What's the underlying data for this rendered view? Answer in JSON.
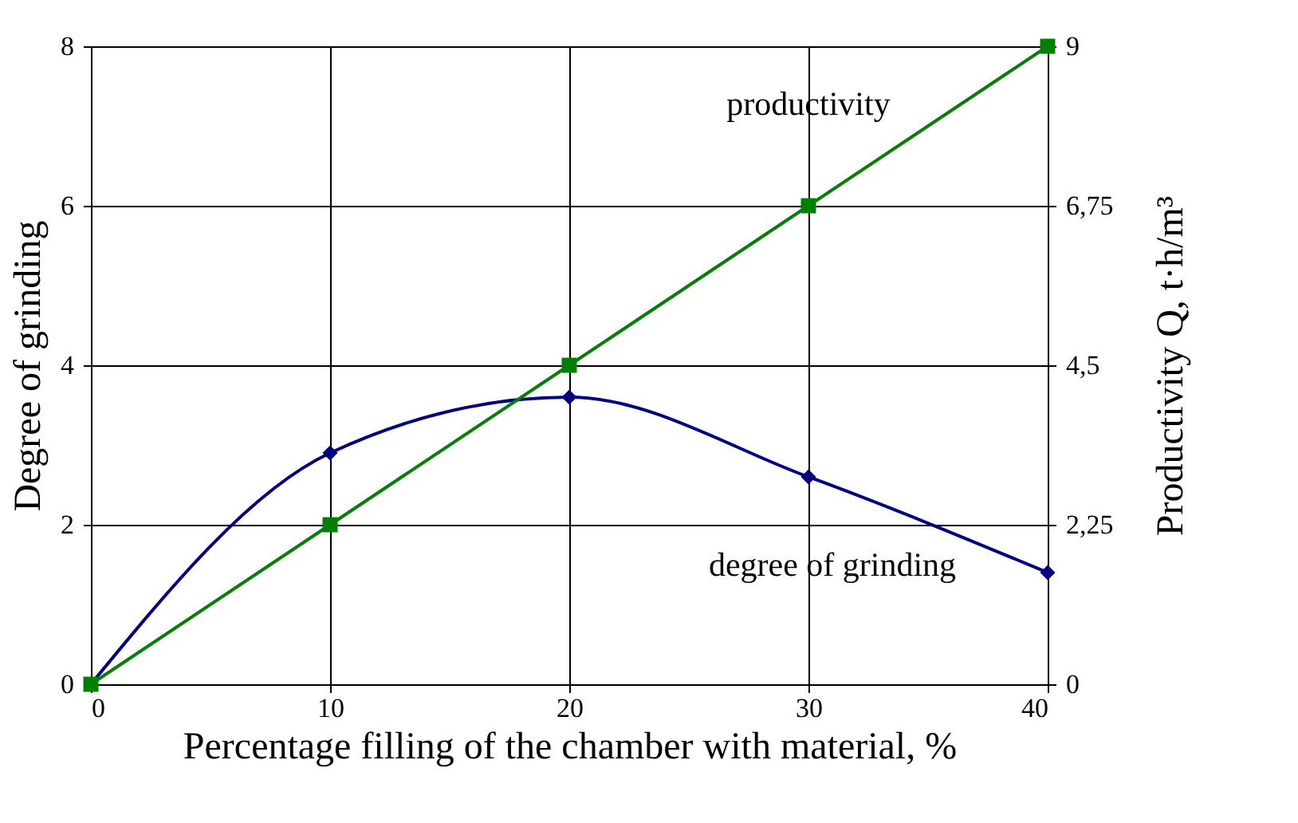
{
  "chart_data": {
    "type": "line",
    "xlabel": "Percentage filling of the chamber with material, %",
    "ylabel": "Degree of grinding",
    "y2label": "Productivity  Q, t·h/m³",
    "x": [
      0,
      10,
      20,
      30,
      40
    ],
    "series": [
      {
        "name": "degree of grinding",
        "color": "#000080",
        "marker": "diamond",
        "values": [
          0,
          2.9,
          3.6,
          2.6,
          1.4
        ]
      },
      {
        "name": "productivity",
        "axis": "y2",
        "color": "#008000",
        "marker": "square",
        "values": [
          0,
          2.25,
          4.5,
          6.75,
          9
        ]
      }
    ],
    "xlim": [
      0,
      40
    ],
    "xticks": [
      0,
      10,
      20,
      30,
      40
    ],
    "ylim": [
      0,
      8
    ],
    "yticks": [
      0,
      2,
      4,
      6,
      8
    ],
    "y2lim": [
      0,
      9
    ],
    "y2ticks": [
      0,
      {
        "value": 2.25,
        "label": "2,25"
      },
      {
        "value": 4.5,
        "label": "4,5"
      },
      {
        "value": 6.75,
        "label": "6,75"
      },
      9
    ],
    "grid": true,
    "legend": false,
    "line_style": "solid"
  }
}
